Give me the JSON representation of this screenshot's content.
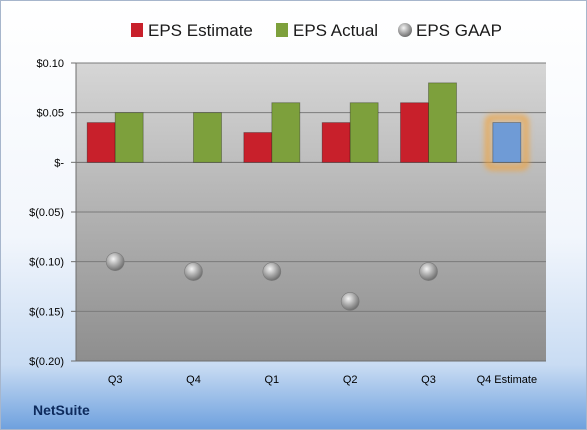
{
  "brand": "NetSuite",
  "chart_data": {
    "type": "bar",
    "categories": [
      "Q3",
      "Q4",
      "Q1",
      "Q2",
      "Q3",
      "Q4 Estimate"
    ],
    "series": [
      {
        "name": "EPS Estimate",
        "kind": "bar",
        "color": "#c8202b",
        "values": [
          0.04,
          null,
          0.03,
          0.04,
          0.06,
          null
        ]
      },
      {
        "name": "EPS Actual",
        "kind": "bar",
        "color": "#7da03c",
        "values": [
          0.05,
          0.05,
          0.06,
          0.06,
          0.08,
          null
        ]
      },
      {
        "name": "EPS GAAP",
        "kind": "marker",
        "color": "#9a9a9a",
        "values": [
          -0.1,
          -0.11,
          -0.11,
          -0.14,
          -0.11,
          null
        ]
      },
      {
        "name": "Q4 Estimate",
        "kind": "highlight-bar",
        "color": "#6f9bd6",
        "glow": "#f2a33a",
        "values": [
          null,
          null,
          null,
          null,
          null,
          0.04
        ]
      }
    ],
    "legend": [
      "EPS Estimate",
      "EPS Actual",
      "EPS GAAP"
    ],
    "legend_position": "top",
    "ylim": [
      -0.2,
      0.1
    ],
    "yticks": [
      0.1,
      0.05,
      0,
      -0.05,
      -0.1,
      -0.15,
      -0.2
    ],
    "ytick_labels": [
      "$0.10",
      "$0.05",
      "$-",
      "$(0.05)",
      "$(0.10)",
      "$(0.15)",
      "$(0.20)"
    ],
    "grid": true,
    "plot_background": [
      "#d6d6d6",
      "#8e8e8e"
    ]
  }
}
